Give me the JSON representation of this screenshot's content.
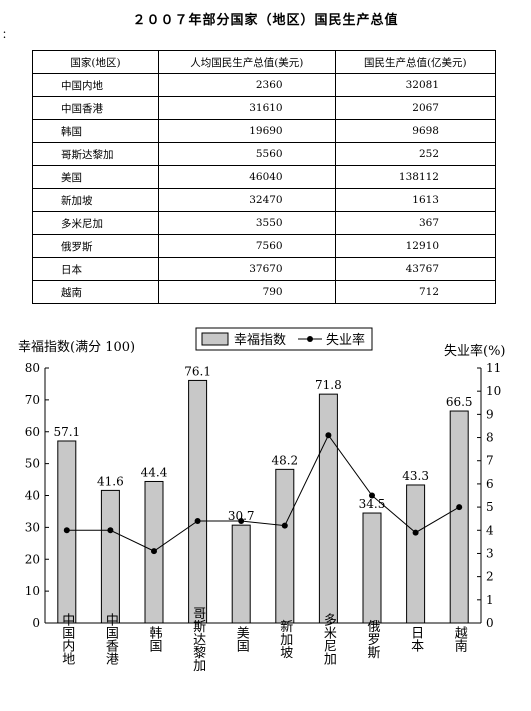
{
  "title": "２００７年部分国家（地区）国民生产总值",
  "edge_mark": "：",
  "table": {
    "headers": [
      "国家(地区)",
      "人均国民生产总值(美元)",
      "国民生产总值(亿美元)"
    ],
    "rows": [
      [
        "中国内地",
        "2360",
        "32081"
      ],
      [
        "中国香港",
        "31610",
        "2067"
      ],
      [
        "韩国",
        "19690",
        "9698"
      ],
      [
        "哥斯达黎加",
        "5560",
        "252"
      ],
      [
        "美国",
        "46040",
        "138112"
      ],
      [
        "新加坡",
        "32470",
        "1613"
      ],
      [
        "多米尼加",
        "3550",
        "367"
      ],
      [
        "俄罗斯",
        "7560",
        "12910"
      ],
      [
        "日本",
        "37670",
        "43767"
      ],
      [
        "越南",
        "790",
        "712"
      ]
    ]
  },
  "chart_data": {
    "type": "bar",
    "categories": [
      "中国内地",
      "中国香港",
      "韩国",
      "哥斯达黎加",
      "美国",
      "新加坡",
      "多米尼加",
      "俄罗斯",
      "日本",
      "越南"
    ],
    "series": [
      {
        "name": "幸福指数",
        "type": "bar",
        "axis": "left",
        "values": [
          57.1,
          41.6,
          44.4,
          76.1,
          30.7,
          48.2,
          71.8,
          34.5,
          43.3,
          66.5
        ],
        "labels": [
          "57.1",
          "41.6",
          "44.4",
          "76.1",
          "30.7",
          "48.2",
          "71.8",
          "34.5",
          "43.3",
          "66.5"
        ]
      },
      {
        "name": "失业率",
        "type": "line",
        "axis": "right",
        "values": [
          4.0,
          4.0,
          3.1,
          4.4,
          4.4,
          4.2,
          8.1,
          5.5,
          3.9,
          5.0
        ]
      }
    ],
    "ylabel": "幸福指数(满分 100)",
    "y2label": "失业率(%)",
    "ylim": [
      0,
      80
    ],
    "yticks": [
      "0",
      "10",
      "20",
      "30",
      "40",
      "50",
      "60",
      "70",
      "80"
    ],
    "y2lim": [
      0,
      11
    ],
    "y2ticks": [
      "0",
      "1",
      "2",
      "3",
      "4",
      "5",
      "6",
      "7",
      "8",
      "9",
      "10",
      "11"
    ],
    "legend_position": "top-center",
    "grid": false,
    "colors": {
      "bar_fill": "#c8c8c8",
      "line": "#000000"
    }
  }
}
